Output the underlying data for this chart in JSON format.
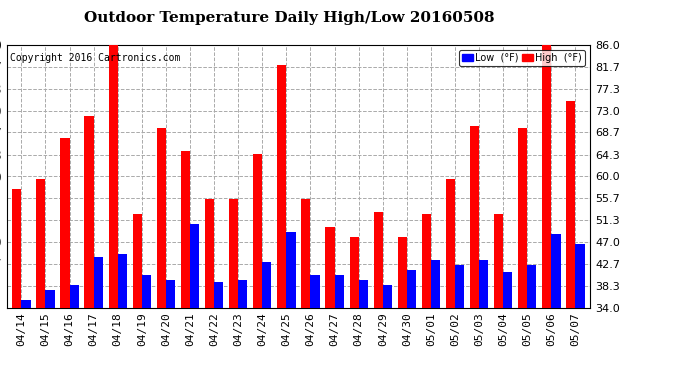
{
  "title": "Outdoor Temperature Daily High/Low 20160508",
  "copyright": "Copyright 2016 Cartronics.com",
  "legend_low": "Low  (°F)",
  "legend_high": "High  (°F)",
  "dates": [
    "04/14",
    "04/15",
    "04/16",
    "04/17",
    "04/18",
    "04/19",
    "04/20",
    "04/21",
    "04/22",
    "04/23",
    "04/24",
    "04/25",
    "04/26",
    "04/27",
    "04/28",
    "04/29",
    "04/30",
    "05/01",
    "05/02",
    "05/03",
    "05/04",
    "05/05",
    "05/06",
    "05/07"
  ],
  "highs": [
    57.5,
    59.5,
    67.5,
    72.0,
    86.0,
    52.5,
    69.5,
    65.0,
    55.5,
    55.5,
    64.5,
    82.0,
    55.5,
    50.0,
    48.0,
    53.0,
    48.0,
    52.5,
    59.5,
    70.0,
    52.5,
    69.5,
    86.0,
    75.0
  ],
  "lows": [
    35.5,
    37.5,
    38.5,
    44.0,
    44.5,
    40.5,
    39.5,
    50.5,
    39.0,
    39.5,
    43.0,
    49.0,
    40.5,
    40.5,
    39.5,
    38.5,
    41.5,
    43.5,
    42.5,
    43.5,
    41.0,
    42.5,
    48.5,
    46.5
  ],
  "high_color": "#ff0000",
  "low_color": "#0000ff",
  "background_color": "#ffffff",
  "plot_bg_color": "#ffffff",
  "grid_color": "#aaaaaa",
  "ylim": [
    34.0,
    86.0
  ],
  "yticks": [
    34.0,
    38.3,
    42.7,
    47.0,
    51.3,
    55.7,
    60.0,
    64.3,
    68.7,
    73.0,
    77.3,
    81.7,
    86.0
  ],
  "title_fontsize": 11,
  "copyright_fontsize": 7,
  "tick_fontsize": 8,
  "bar_width": 0.38
}
